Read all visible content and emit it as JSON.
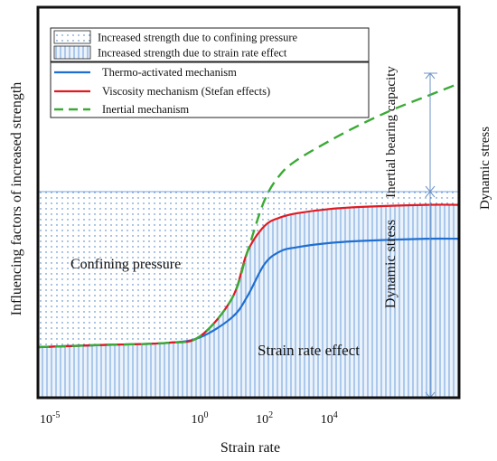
{
  "chart_data": {
    "type": "line",
    "xlabel": "Strain rate",
    "ylabel": "Influencing factors of increased strength",
    "x_scale": "log",
    "xlim": [
      1e-05,
      100000000.0
    ],
    "x_ticks": [
      {
        "value": 1e-05,
        "base": "10",
        "exp": "-5"
      },
      {
        "value": 1,
        "base": "10",
        "exp": "0"
      },
      {
        "value": 100,
        "base": "10",
        "exp": "2"
      },
      {
        "value": 10000,
        "base": "10",
        "exp": "4"
      }
    ],
    "y_ticks_shown": false,
    "grid": false,
    "legend": {
      "placement": "top-left",
      "fill_entries": [
        {
          "label": "Increased strength due to confining pressure",
          "pattern": "dots"
        },
        {
          "label": "Increased strength due to strain rate effect",
          "pattern": "vertical-hatch"
        }
      ],
      "line_entries": [
        {
          "label": "Thermo-activated mechanism",
          "color": "#1f6fd1",
          "dash": "solid"
        },
        {
          "label": "Viscosity mechanism (Stefan effects)",
          "color": "#e01a22",
          "dash": "solid"
        },
        {
          "label": "Inertial mechanism",
          "color": "#3aaa35",
          "dash": "dashed"
        }
      ]
    },
    "series": [
      {
        "name": "Thermo-activated mechanism",
        "color": "#1f6fd1",
        "points": [
          [
            1e-05,
            0.03
          ],
          [
            0.001,
            0.04
          ],
          [
            0.1,
            0.05
          ],
          [
            1,
            0.075
          ],
          [
            10,
            0.17
          ],
          [
            30,
            0.27
          ],
          [
            100,
            0.42
          ],
          [
            300,
            0.48
          ],
          [
            1000,
            0.5
          ],
          [
            10000.0,
            0.52
          ],
          [
            100000.0,
            0.53
          ],
          [
            10000000.0,
            0.54
          ],
          [
            100000000.0,
            0.54
          ]
        ]
      },
      {
        "name": "Viscosity mechanism (Stefan effects)",
        "color": "#e01a22",
        "points": [
          [
            1e-05,
            0.03
          ],
          [
            0.001,
            0.04
          ],
          [
            0.1,
            0.05
          ],
          [
            1,
            0.08
          ],
          [
            10,
            0.26
          ],
          [
            30,
            0.48
          ],
          [
            100,
            0.6
          ],
          [
            300,
            0.64
          ],
          [
            1000,
            0.66
          ],
          [
            10000.0,
            0.68
          ],
          [
            100000.0,
            0.69
          ],
          [
            10000000.0,
            0.7
          ],
          [
            100000000.0,
            0.7
          ]
        ]
      },
      {
        "name": "Inertial mechanism",
        "color": "#3aaa35",
        "points": [
          [
            1e-05,
            0.03
          ],
          [
            0.001,
            0.04
          ],
          [
            0.1,
            0.05
          ],
          [
            1,
            0.08
          ],
          [
            10,
            0.26
          ],
          [
            30,
            0.48
          ],
          [
            100,
            0.72
          ],
          [
            300,
            0.84
          ],
          [
            1000,
            0.91
          ],
          [
            10000.0,
            1.0
          ],
          [
            100000.0,
            1.08
          ],
          [
            1000000.0,
            1.15
          ],
          [
            10000000.0,
            1.21
          ],
          [
            100000000.0,
            1.27
          ]
        ]
      }
    ],
    "regions": [
      {
        "label": "Confining pressure",
        "pattern": "dots"
      },
      {
        "label": "Strain rate effect",
        "pattern": "vertical-hatch"
      }
    ],
    "annotations": [
      {
        "text": "Inertial bearing capacity",
        "orientation": "vertical"
      },
      {
        "text": "Dynamic stress",
        "orientation": "vertical",
        "position": "inside"
      },
      {
        "text": "Dynamic stress",
        "orientation": "vertical",
        "position": "outside-right"
      }
    ]
  }
}
